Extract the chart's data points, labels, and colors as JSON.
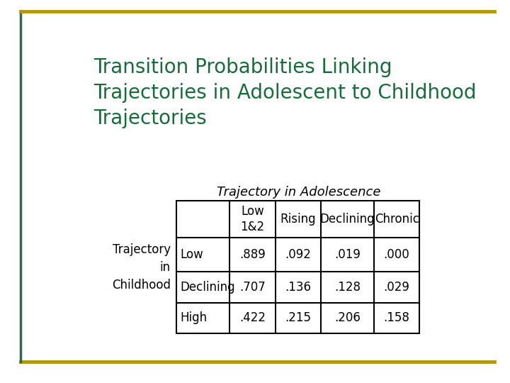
{
  "title": "Transition Probabilities Linking\nTrajectories in Adolescent to Childhood\nTrajectories",
  "title_color": "#1a6b3c",
  "subtitle": "Trajectory in Adolescence",
  "row_label_title": "Trajectory\nin\nChildhood",
  "col_headers": [
    "",
    "Low\n1&2",
    "Rising",
    "Declining",
    "Chronic"
  ],
  "row_headers": [
    "Low",
    "Declining",
    "High"
  ],
  "table_data": [
    [
      ".889",
      ".092",
      ".019",
      ".000"
    ],
    [
      ".707",
      ".136",
      ".128",
      ".029"
    ],
    [
      ".422",
      ".215",
      ".206",
      ".158"
    ]
  ],
  "bg_color": "#ffffff",
  "border_green_color": "#2d6a4f",
  "border_gold_color": "#b8960c",
  "table_border_color": "#000000",
  "text_color": "#000000",
  "title_fontsize": 20,
  "subtitle_fontsize": 13,
  "table_fontsize": 12,
  "label_fontsize": 12,
  "border_lw_green": 2.5,
  "border_lw_gold": 3.5
}
